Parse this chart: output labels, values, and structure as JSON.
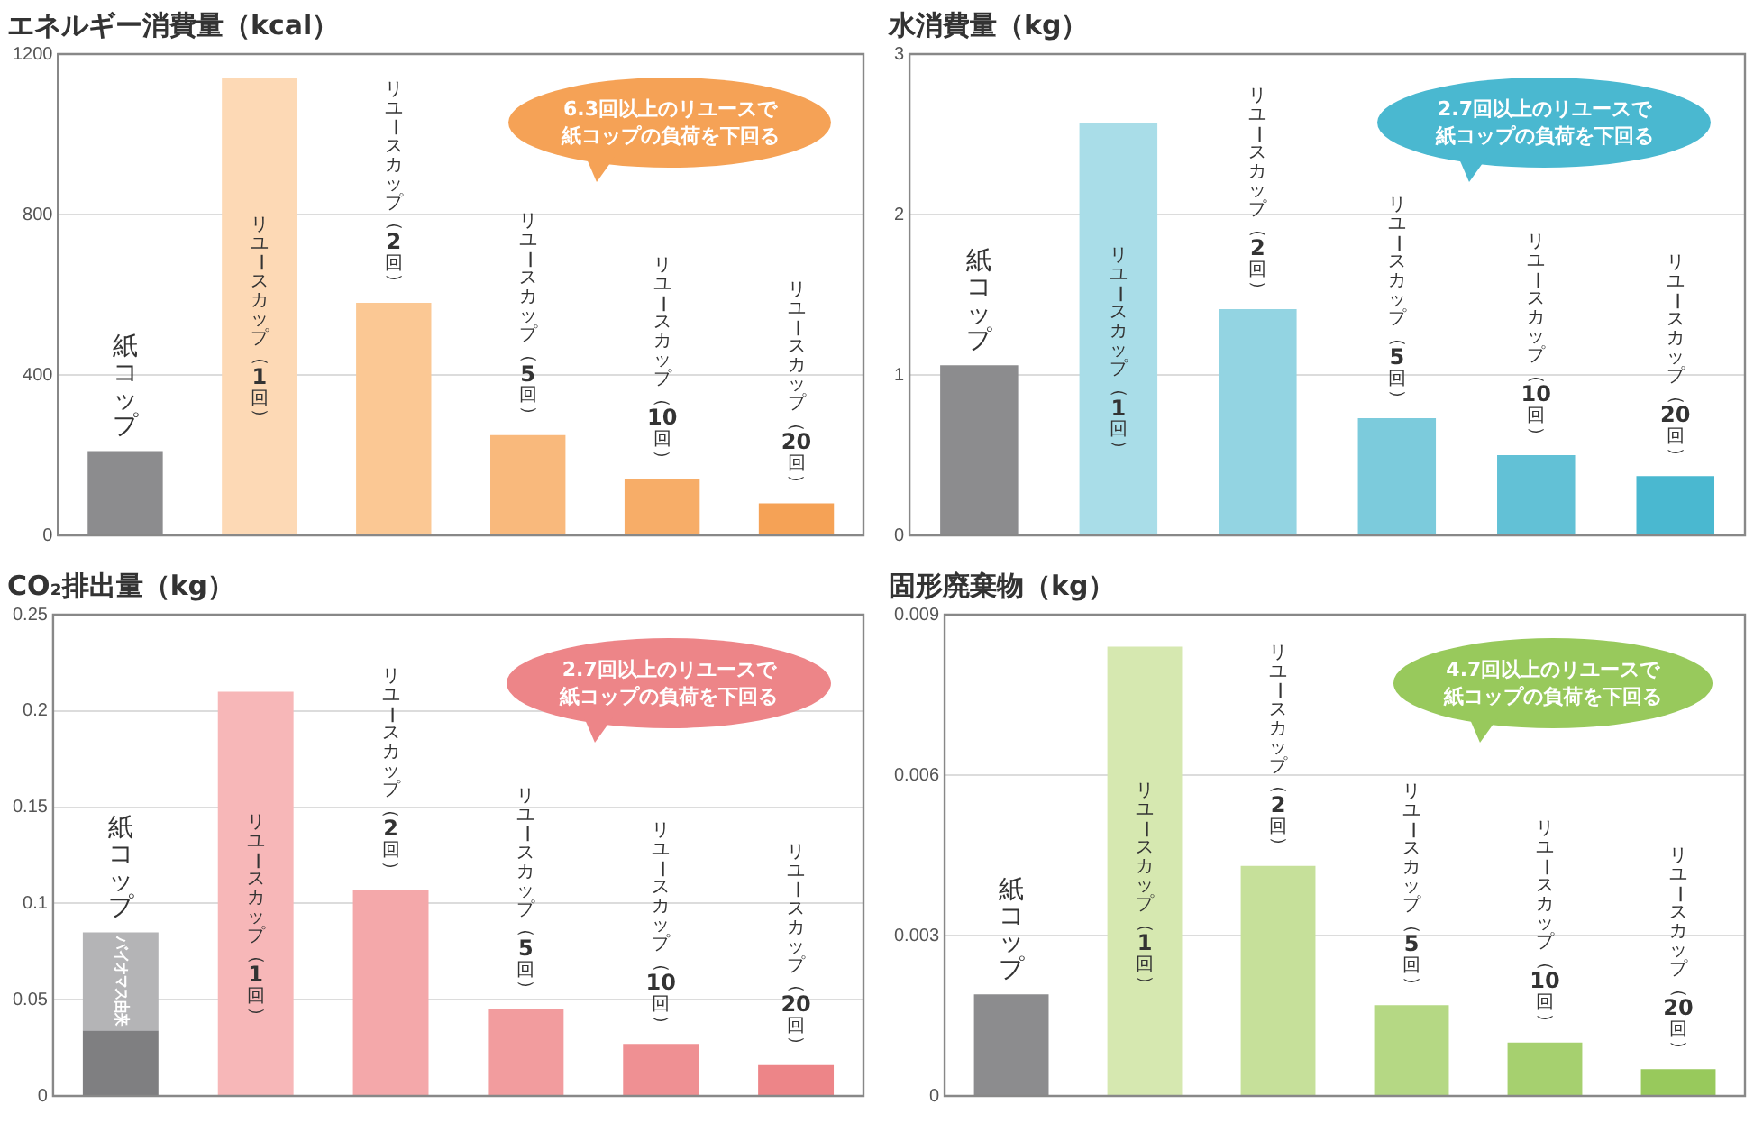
{
  "chart_data": [
    {
      "type": "bar",
      "title": "エネルギー消費量（kcal）",
      "categories": [
        "紙コップ",
        "リユースカップ（1回）",
        "リユースカップ（2回）",
        "リユースカップ（5回）",
        "リユースカップ（10回）",
        "リユースカップ（20回）"
      ],
      "values": [
        210,
        1140,
        580,
        250,
        140,
        80
      ],
      "colors": [
        "#8c8c8e",
        "#fdd9b5",
        "#fbc894",
        "#f9b97c",
        "#f7ad68",
        "#f5a256"
      ],
      "ylim": [
        0,
        1200
      ],
      "yticks": [
        0,
        400,
        800,
        1200
      ],
      "grid": "y",
      "annotations": [
        "6.3回以上のリユースで",
        "紙コップの負荷を下回る"
      ]
    },
    {
      "type": "bar",
      "title": "水消費量（kg）",
      "categories": [
        "紙コップ",
        "リユースカップ（1回）",
        "リユースカップ（2回）",
        "リユースカップ（5回）",
        "リユースカップ（10回）",
        "リユースカップ（20回）"
      ],
      "values": [
        1.06,
        2.57,
        1.41,
        0.73,
        0.5,
        0.37
      ],
      "colors": [
        "#8c8c8e",
        "#a9dde8",
        "#93d4e2",
        "#7ccbdc",
        "#62c1d6",
        "#4ab8d0"
      ],
      "ylim": [
        0,
        3
      ],
      "yticks": [
        0,
        1,
        2,
        3
      ],
      "grid": "y",
      "annotations": [
        "2.7回以上のリユースで",
        "紙コップの負荷を下回る"
      ]
    },
    {
      "type": "bar",
      "title": "CO₂排出量（kg）",
      "categories": [
        "紙コップ",
        "リユースカップ（1回）",
        "リユースカップ（2回）",
        "リユースカップ（5回）",
        "リユースカップ（10回）",
        "リユースカップ（20回）"
      ],
      "stacked": true,
      "series": [
        {
          "colors": [
            "#7f7f81",
            "#f7b7b8",
            "#f4a8aa",
            "#f29c9e",
            "#ef9093",
            "#ed8588"
          ],
          "values": [
            0.034,
            0.21,
            0.107,
            0.045,
            0.027,
            0.016
          ]
        },
        {
          "name": "バイオマス由来",
          "color": "#b4b4b6",
          "values": [
            0.051,
            null,
            null,
            null,
            null,
            null
          ]
        }
      ],
      "ylim": [
        0,
        0.25
      ],
      "yticks": [
        0,
        0.05,
        0.1,
        0.15,
        0.2,
        0.25
      ],
      "grid": "y",
      "annotations": [
        "2.7回以上のリユースで",
        "紙コップの負荷を下回る"
      ]
    },
    {
      "type": "bar",
      "title": "固形廃棄物（kg）",
      "categories": [
        "紙コップ",
        "リユースカップ（1回）",
        "リユースカップ（2回）",
        "リユースカップ（5回）",
        "リユースカップ（10回）",
        "リユースカップ（20回）"
      ],
      "values": [
        0.0019,
        0.0084,
        0.0043,
        0.0017,
        0.001,
        0.0005
      ],
      "colors": [
        "#8c8c8e",
        "#d6e8b0",
        "#c6e09a",
        "#b5d884",
        "#a6d06f",
        "#98c95c"
      ],
      "ylim": [
        0,
        0.009
      ],
      "yticks": [
        0,
        0.003,
        0.006,
        0.009
      ],
      "grid": "y",
      "annotations": [
        "4.7回以上のリユースで",
        "紙コップの負荷を下回る"
      ]
    }
  ]
}
